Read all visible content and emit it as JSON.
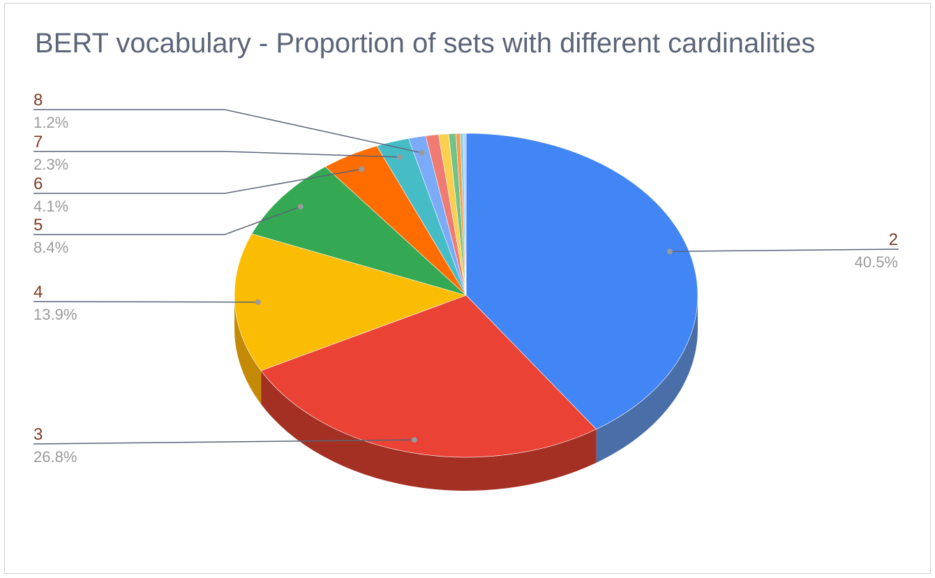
{
  "chart_data": {
    "type": "pie",
    "title": "BERT vocabulary - Proportion of sets with different cardinalities",
    "three_d": true,
    "slices": [
      {
        "category": "2",
        "percent_label": "40.5%",
        "value": 40.5,
        "color": "#4285f4",
        "dark": "#4a6ea8",
        "labeled": true,
        "label_side": "right"
      },
      {
        "category": "3",
        "percent_label": "26.8%",
        "value": 26.8,
        "color": "#ea4335",
        "dark": "#a33023",
        "labeled": true,
        "label_side": "left"
      },
      {
        "category": "4",
        "percent_label": "13.9%",
        "value": 13.9,
        "color": "#fbbc04",
        "dark": "#c48a06",
        "labeled": true,
        "label_side": "left"
      },
      {
        "category": "5",
        "percent_label": "8.4%",
        "value": 8.4,
        "color": "#34a853",
        "dark": "#237a3a",
        "labeled": true,
        "label_side": "left"
      },
      {
        "category": "6",
        "percent_label": "4.1%",
        "value": 4.1,
        "color": "#ff6d01",
        "dark": "#b44c02",
        "labeled": true,
        "label_side": "left"
      },
      {
        "category": "7",
        "percent_label": "2.3%",
        "value": 2.3,
        "color": "#46bdc6",
        "dark": "#2e8990",
        "labeled": true,
        "label_side": "left"
      },
      {
        "category": "8",
        "percent_label": "1.2%",
        "value": 1.2,
        "color": "#7baaf7",
        "dark": "#5a7fbf",
        "labeled": true,
        "label_side": "left"
      },
      {
        "category": "",
        "percent_label": "",
        "value": 0.9,
        "color": "#f07b72",
        "dark": "#b0574f",
        "labeled": false
      },
      {
        "category": "",
        "percent_label": "",
        "value": 0.7,
        "color": "#fcd04f",
        "dark": "#c0992f",
        "labeled": false
      },
      {
        "category": "",
        "percent_label": "",
        "value": 0.5,
        "color": "#71c287",
        "dark": "#4f8e60",
        "labeled": false
      },
      {
        "category": "",
        "percent_label": "",
        "value": 0.3,
        "color": "#ff994d",
        "dark": "#c06a2a",
        "labeled": false
      },
      {
        "category": "",
        "percent_label": "",
        "value": 0.2,
        "color": "#7ed1d7",
        "dark": "#5a9ca1",
        "labeled": false
      },
      {
        "category": "",
        "percent_label": "",
        "value": 0.2,
        "color": "#b3cefb",
        "dark": "#8aa0c8",
        "labeled": false
      }
    ]
  }
}
